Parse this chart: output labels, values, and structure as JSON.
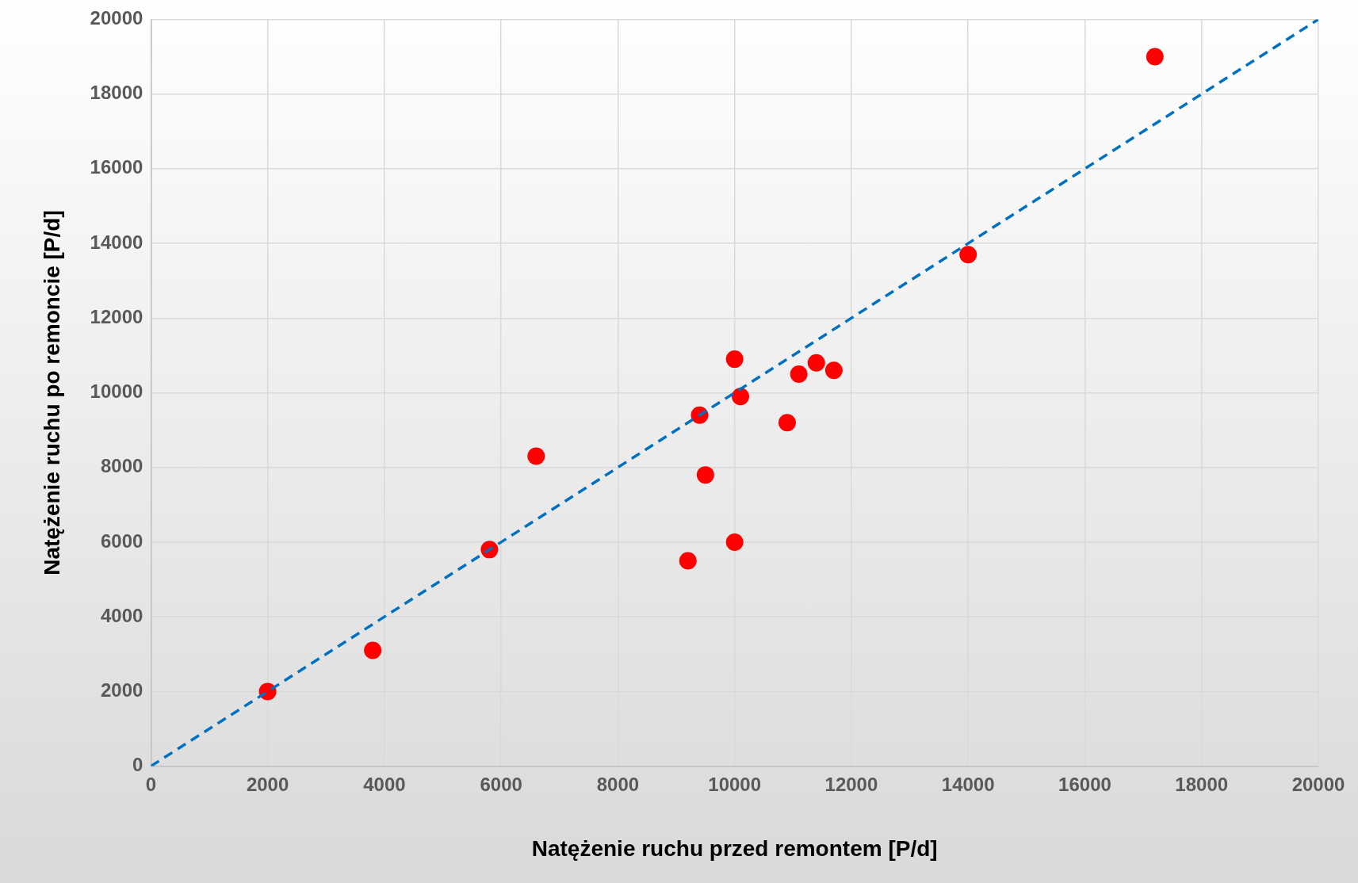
{
  "chart_data": {
    "type": "scatter",
    "xlabel": "Natężenie ruchu przed remontem [P/d]",
    "ylabel": "Natężenie ruchu po remoncie [P/d]",
    "xlim": [
      0,
      20000
    ],
    "ylim": [
      0,
      20000
    ],
    "xticks": [
      0,
      2000,
      4000,
      6000,
      8000,
      10000,
      12000,
      14000,
      16000,
      18000,
      20000
    ],
    "yticks": [
      0,
      2000,
      4000,
      6000,
      8000,
      10000,
      12000,
      14000,
      16000,
      18000,
      20000
    ],
    "grid": true,
    "legend": false,
    "series": [
      {
        "type": "line",
        "color": "#0070c0",
        "line_style": "dashed",
        "marker": "none",
        "x": [
          0,
          20000
        ],
        "values": [
          0,
          20000
        ]
      },
      {
        "color": "#ff0000",
        "marker": "circle",
        "x": [
          2000,
          3800,
          5800,
          6600,
          9200,
          9400,
          9500,
          10000,
          10000,
          10100,
          10900,
          11100,
          11400,
          11700,
          14000,
          17200
        ],
        "values": [
          2000,
          3100,
          5800,
          8300,
          5500,
          9400,
          7800,
          10900,
          6000,
          9900,
          9200,
          10500,
          10800,
          10600,
          13700,
          19000
        ]
      }
    ]
  }
}
